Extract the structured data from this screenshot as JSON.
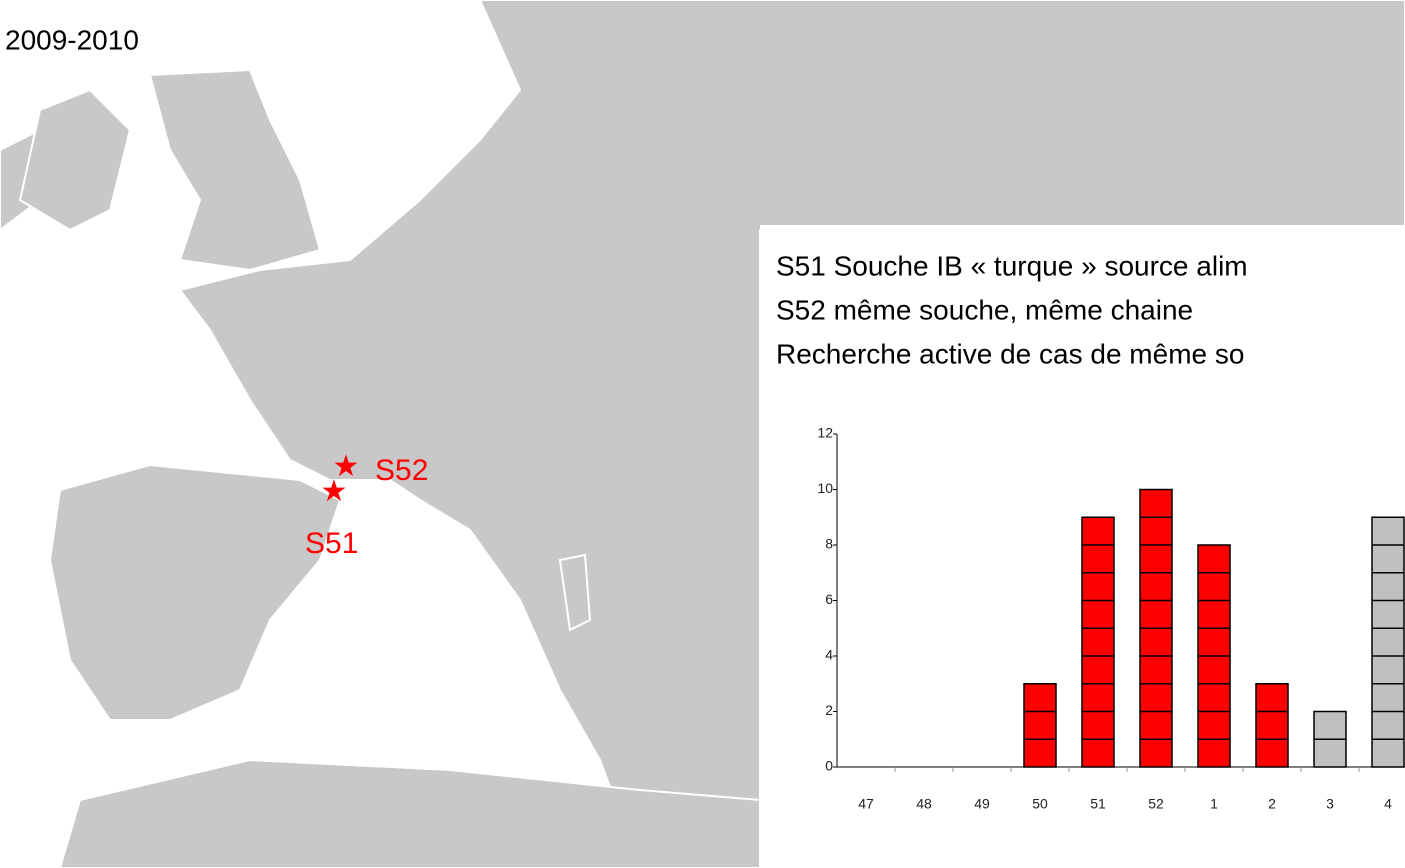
{
  "period": "2009-2010",
  "notes": [
    "S51 Souche IB « turque » source alim",
    "S52 même souche, même chaine",
    "Recherche active de cas de même so"
  ],
  "map_labels": [
    "S52",
    "S51"
  ],
  "chart_data": {
    "type": "bar",
    "categories": [
      "47",
      "48",
      "49",
      "50",
      "51",
      "52",
      "1",
      "2",
      "3",
      "4"
    ],
    "values": [
      0,
      0,
      0,
      3,
      9,
      10,
      8,
      3,
      2,
      9
    ],
    "colors": [
      "#ff0000",
      "#ff0000",
      "#ff0000",
      "#ff0000",
      "#ff0000",
      "#ff0000",
      "#ff0000",
      "#ff0000",
      "#c0c0c0",
      "#c0c0c0"
    ],
    "ylim": [
      0,
      12
    ],
    "yticks": [
      0,
      2,
      4,
      6,
      8,
      10,
      12
    ]
  }
}
